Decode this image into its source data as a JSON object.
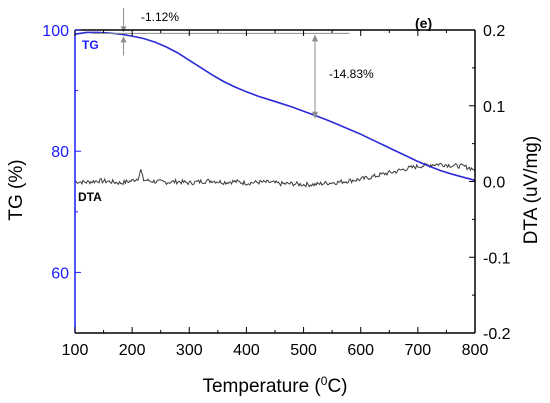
{
  "chart_data": {
    "type": "line",
    "panel_label": "(e)",
    "xlabel_prefix": "Temperature (",
    "xlabel_sup": "0",
    "xlabel_suffix": "C)",
    "ylabel_left": "TG (%)",
    "ylabel_right": "DTA (uV/mg)",
    "xlim": [
      100,
      800
    ],
    "ylim_left": [
      50,
      100
    ],
    "ylim_right": [
      -0.2,
      0.2
    ],
    "x_ticks": [
      "100",
      "200",
      "300",
      "400",
      "500",
      "600",
      "700",
      "800"
    ],
    "y_left_ticks": [
      "100",
      "80",
      "60"
    ],
    "y_right_ticks": [
      "0.2",
      "0.1",
      "0.0",
      "-0.1",
      "-0.2"
    ],
    "grid": false,
    "colors": {
      "TG": "#2b2bd6",
      "DTA": "#3a3a3a",
      "annotation": "#8c8c8c",
      "left_axis": "#1a1aff"
    },
    "series": [
      {
        "name": "TG",
        "axis": "left",
        "x": [
          100,
          120,
          140,
          160,
          180,
          200,
          220,
          240,
          260,
          280,
          300,
          320,
          340,
          360,
          380,
          400,
          420,
          440,
          460,
          480,
          500,
          520,
          540,
          560,
          580,
          600,
          620,
          640,
          660,
          680,
          700,
          720,
          740,
          760,
          780,
          800
        ],
        "y": [
          99.3,
          99.6,
          99.6,
          99.5,
          99.3,
          99.0,
          98.6,
          98.0,
          97.2,
          96.2,
          95.0,
          93.8,
          92.6,
          91.5,
          90.6,
          89.8,
          89.1,
          88.5,
          87.9,
          87.3,
          86.6,
          85.9,
          85.2,
          84.4,
          83.6,
          82.8,
          81.9,
          81.0,
          80.1,
          79.2,
          78.3,
          77.5,
          76.8,
          76.2,
          75.7,
          75.2
        ]
      },
      {
        "name": "DTA",
        "axis": "right",
        "x": [
          100,
          120,
          140,
          160,
          180,
          200,
          210,
          215,
          220,
          240,
          260,
          280,
          300,
          320,
          340,
          360,
          380,
          400,
          420,
          440,
          460,
          480,
          500,
          520,
          540,
          560,
          580,
          600,
          620,
          640,
          660,
          680,
          700,
          720,
          740,
          760,
          780,
          800
        ],
        "y": [
          0.0,
          -0.001,
          0.001,
          0.0,
          -0.002,
          0.001,
          0.004,
          0.015,
          0.002,
          0.0,
          -0.001,
          0.0,
          -0.002,
          0.0,
          0.001,
          -0.001,
          0.0,
          -0.002,
          -0.001,
          -0.001,
          -0.003,
          -0.003,
          -0.004,
          -0.004,
          -0.002,
          -0.001,
          0.001,
          0.003,
          0.006,
          0.01,
          0.013,
          0.017,
          0.02,
          0.022,
          0.023,
          0.021,
          0.02,
          0.016
        ]
      }
    ],
    "annotations": [
      {
        "text": "-1.12%"
      },
      {
        "text": "-14.83%"
      }
    ],
    "series_labels": [
      "TG",
      "DTA"
    ]
  }
}
